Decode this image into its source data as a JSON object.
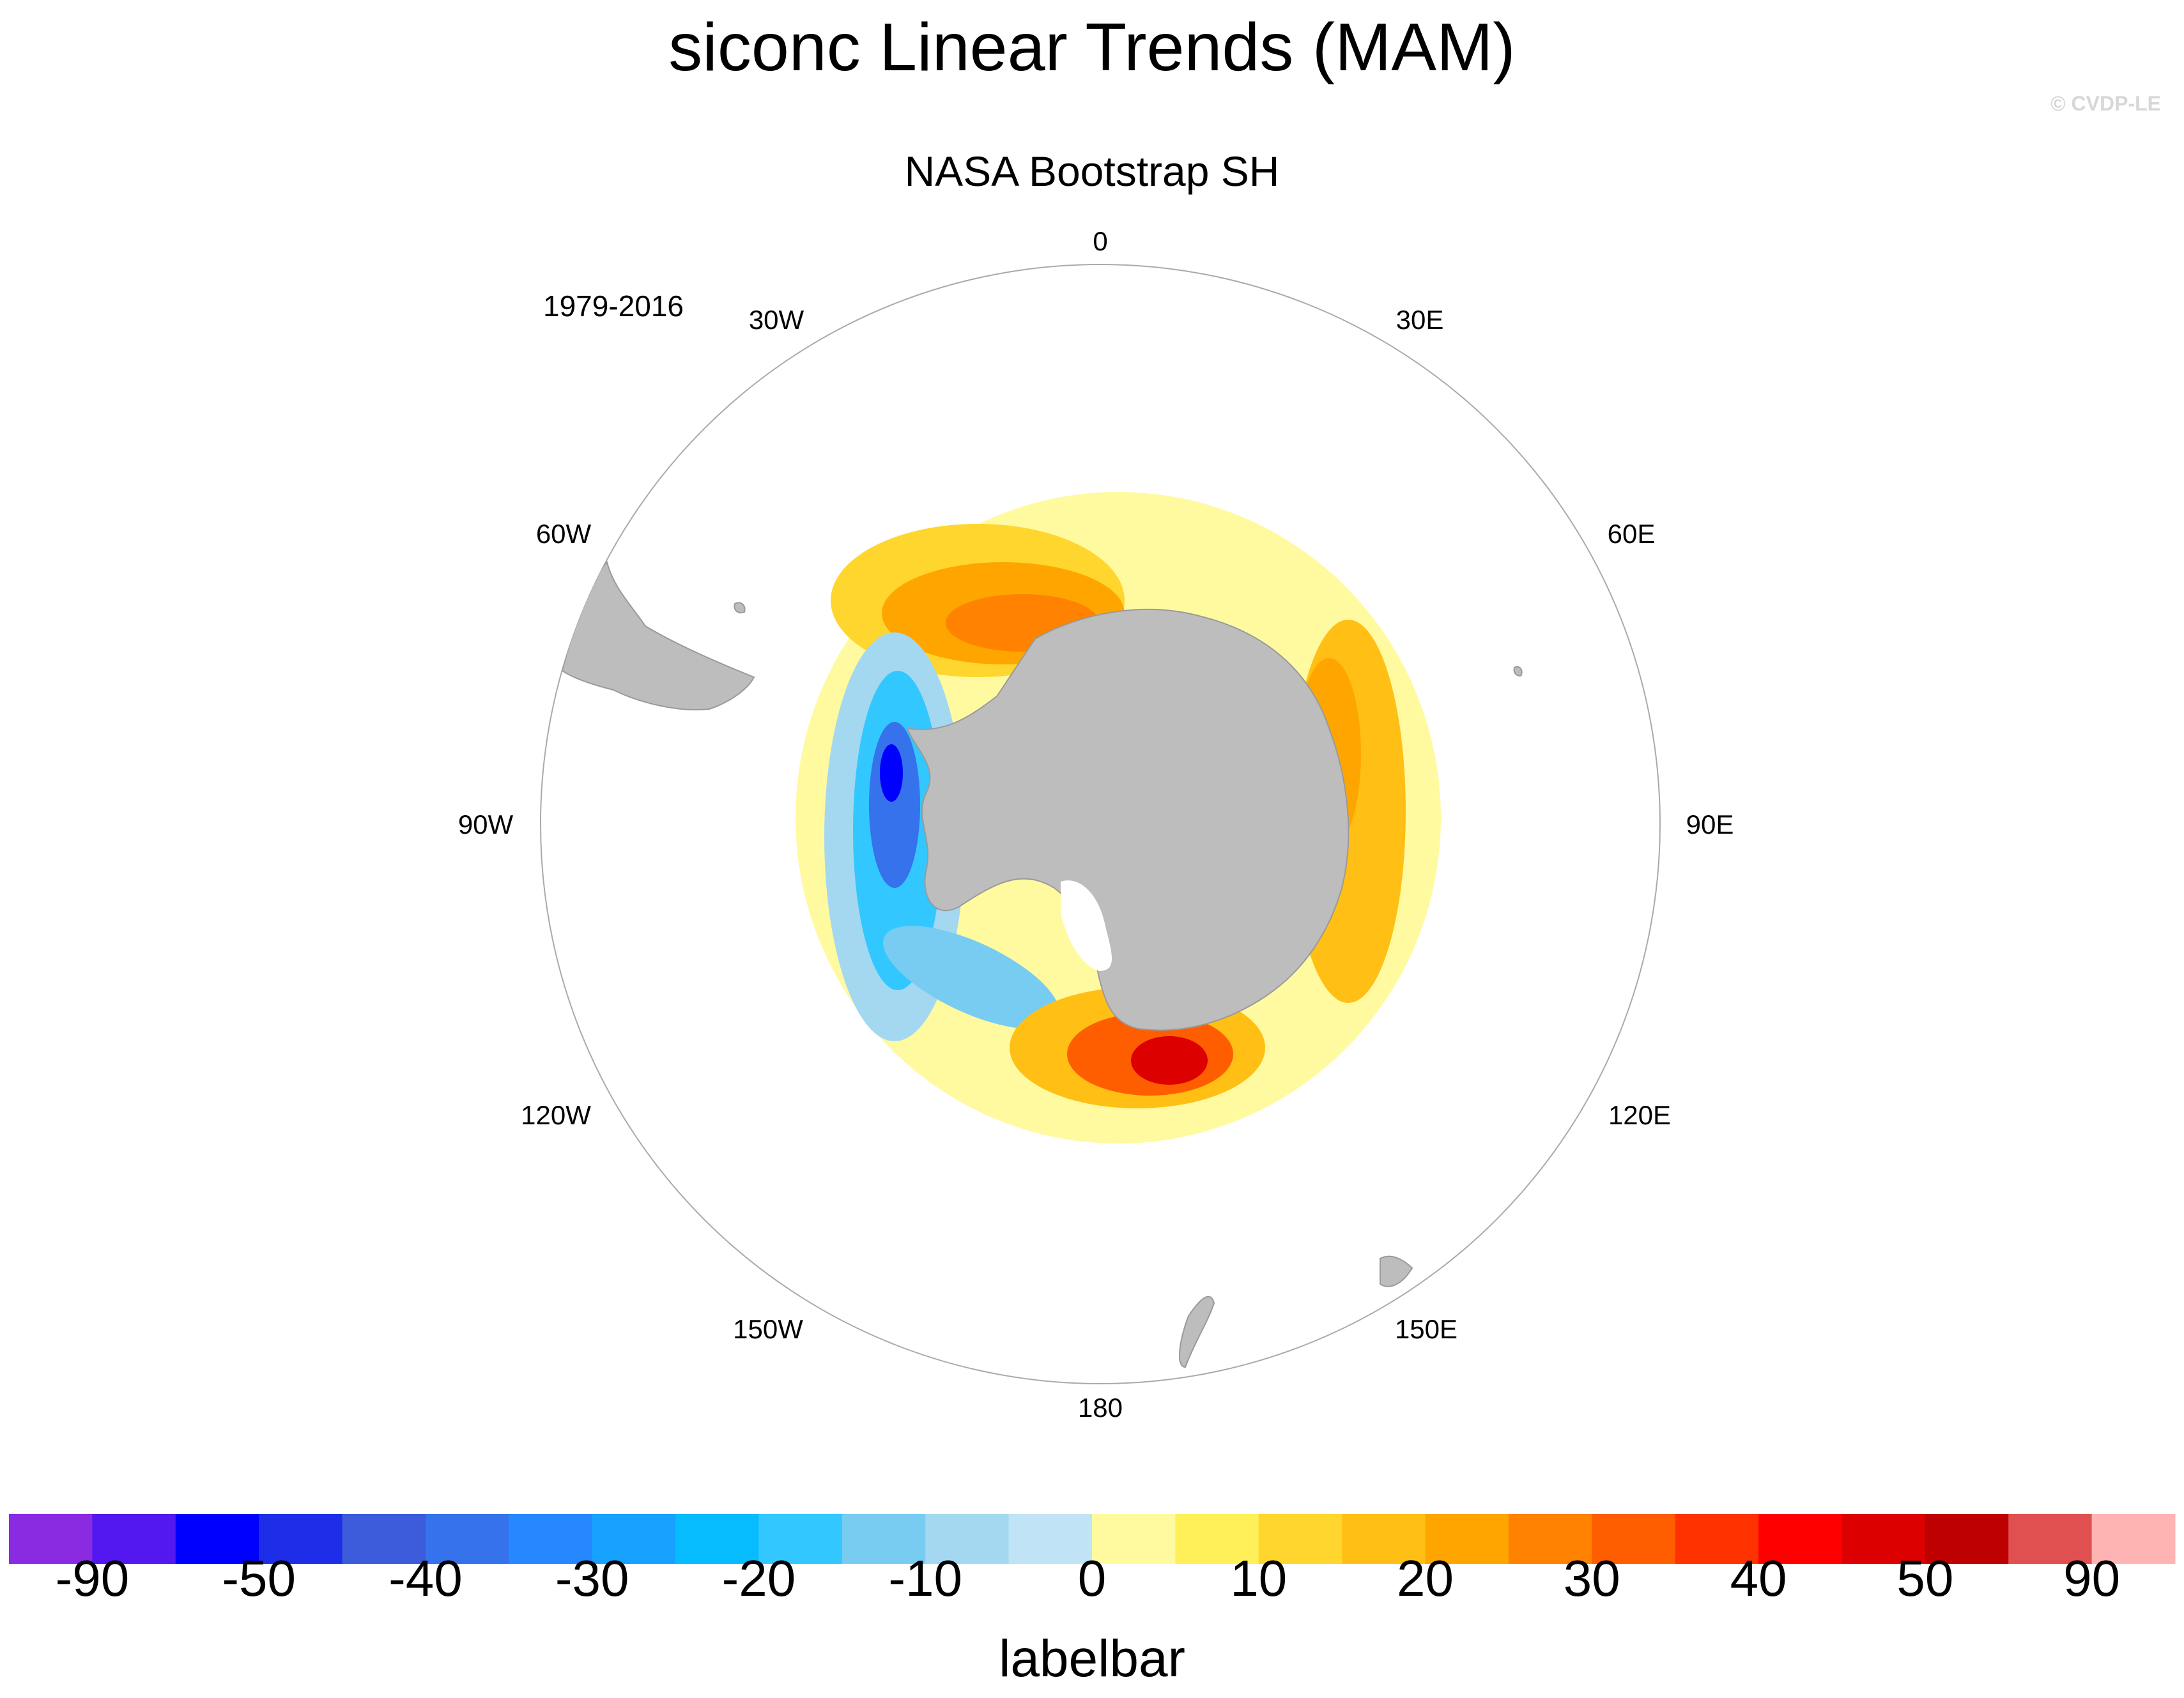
{
  "title": "siconc Linear Trends (MAM)",
  "credit": "© CVDP-LE",
  "subtitle": "NASA Bootstrap SH",
  "period": "1979-2016",
  "map": {
    "projection": "south-polar-stereographic",
    "longitude_labels": [
      "0",
      "30E",
      "60E",
      "90E",
      "120E",
      "150E",
      "180",
      "150W",
      "120W",
      "90W",
      "60W",
      "30W"
    ],
    "land_color": "#bdbdbd",
    "border_color": "#9a9a9a",
    "features": [
      {
        "region": "Weddell Sea",
        "trend": "positive",
        "peak_value": 30
      },
      {
        "region": "Amundsen-Bellingshausen Seas",
        "trend": "negative",
        "peak_value": -50
      },
      {
        "region": "Ross Sea",
        "trend": "positive",
        "peak_value": 50
      },
      {
        "region": "East Antarctic coast",
        "trend": "positive",
        "peak_value": 30
      }
    ]
  },
  "colorbar": {
    "label": "labelbar",
    "tick_labels": [
      "-90",
      "-50",
      "-40",
      "-30",
      "-20",
      "-10",
      "0",
      "10",
      "20",
      "30",
      "40",
      "50",
      "90"
    ],
    "colors": [
      "#8a2be2",
      "#5318f0",
      "#0000ff",
      "#1e2ee8",
      "#3b5bdb",
      "#3672ec",
      "#2588ff",
      "#17a2ff",
      "#06bcff",
      "#32c8ff",
      "#78ccf2",
      "#a4d8f0",
      "#c0e4f5",
      "#fffaa0",
      "#fff05a",
      "#ffd62e",
      "#ffbf14",
      "#ffa500",
      "#ff8200",
      "#ff5e00",
      "#ff3200",
      "#ff0000",
      "#dc0000",
      "#be0000",
      "#e05050",
      "#ffb4b4"
    ]
  }
}
